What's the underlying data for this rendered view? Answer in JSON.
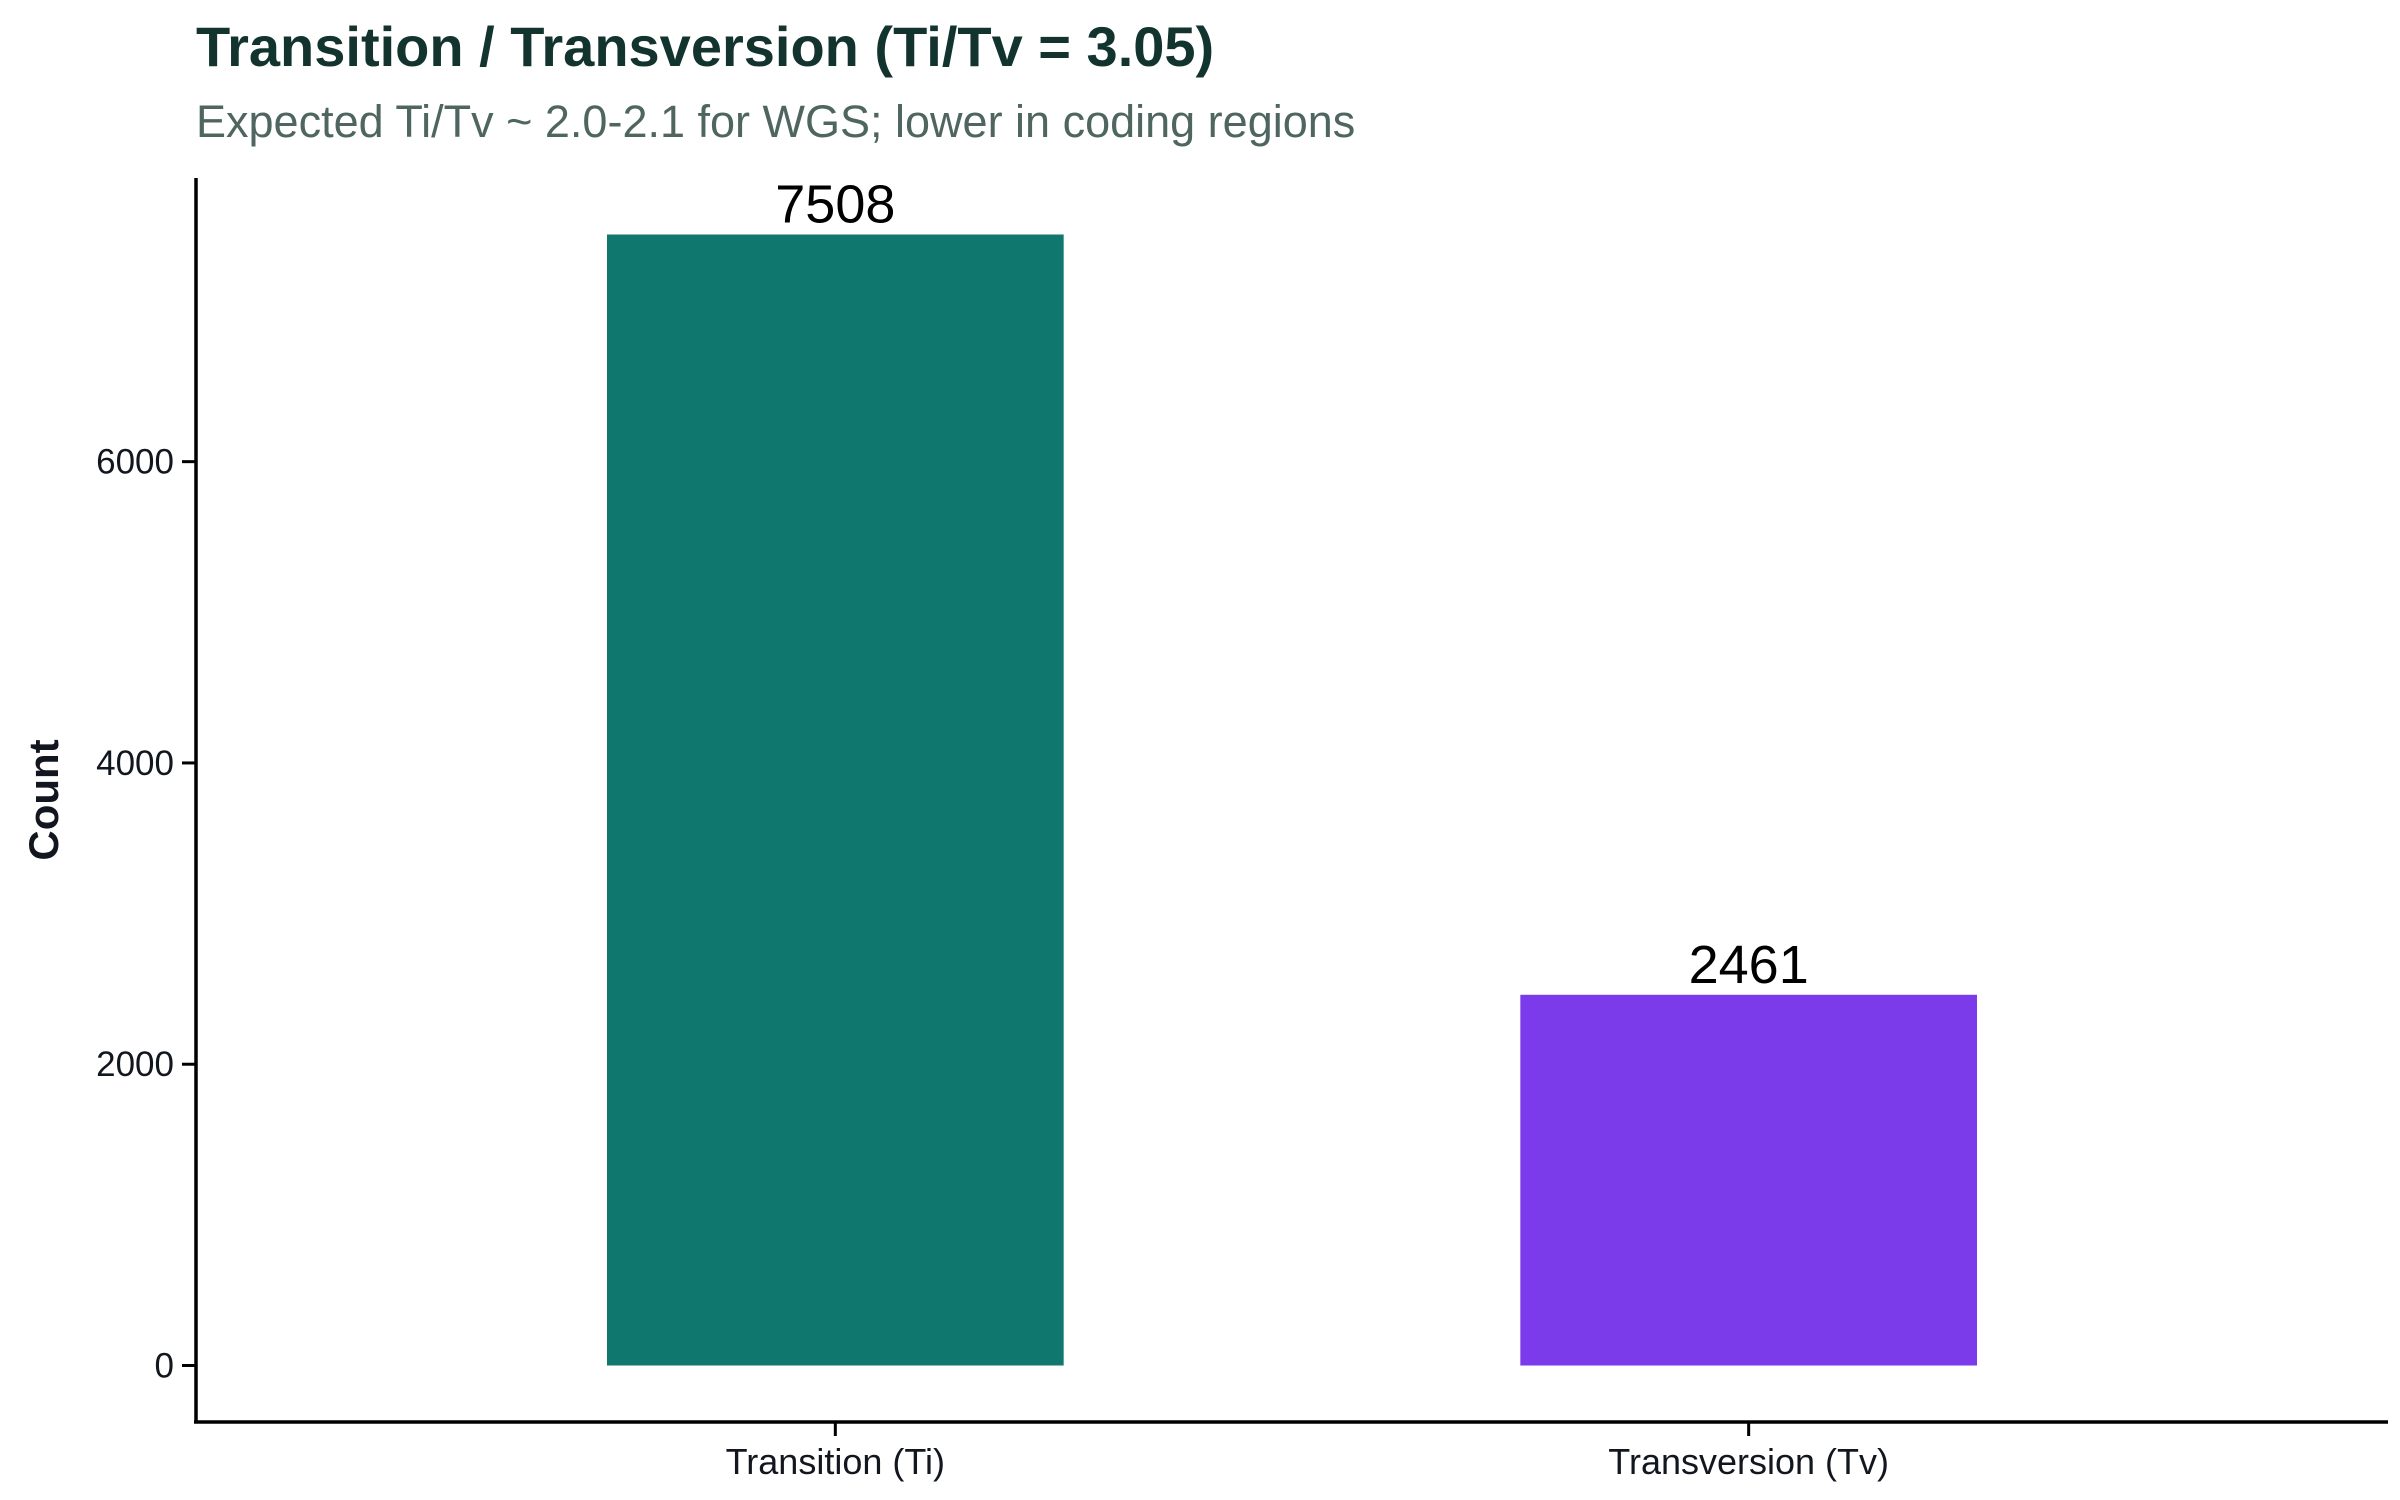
{
  "chart_data": {
    "type": "bar",
    "title": "Transition / Transversion (Ti/Tv = 3.05)",
    "subtitle": "Expected Ti/Tv ~ 2.0-2.1 for WGS; lower in coding regions",
    "xlabel": "",
    "ylabel": "Count",
    "categories": [
      "Transition (Ti)",
      "Transversion (Tv)"
    ],
    "values": [
      7508,
      2461
    ],
    "data_labels": [
      "7508",
      "2461"
    ],
    "colors": [
      "#10776e",
      "#7b3bea"
    ],
    "ylim": [
      -375,
      7883
    ],
    "yticks": [
      0,
      2000,
      4000,
      6000
    ],
    "ytick_labels": [
      "0",
      "2000",
      "4000",
      "6000"
    ],
    "grid": false,
    "legend": "none"
  }
}
